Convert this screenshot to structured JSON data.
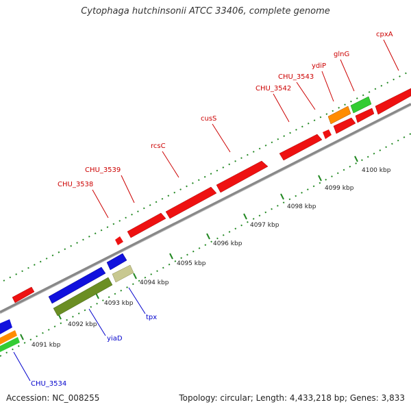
{
  "title": "Cytophaga hutchinsonii ATCC 33406, complete genome",
  "accession": "Accession: NC_008255",
  "topology": "Topology: circular; Length: 4,433,218 bp; Genes: 3,833",
  "colors": {
    "forward_label": "#cc0000",
    "reverse_label": "#0000cc",
    "red_gene": "#ee1111",
    "blue_gene": "#1111dd",
    "olive_gene": "#6b8e23",
    "khaki_gene": "#c8c890",
    "orange_gene": "#ff8c00",
    "green_gene": "#33cc33",
    "backbone": "#888888",
    "ticks": "#228822"
  },
  "scale_labels": [
    "4091 kbp",
    "4092 kbp",
    "4093 kbp",
    "4094 kbp",
    "4095 kbp",
    "4096 kbp",
    "4097 kbp",
    "4098 kbp",
    "4099 kbp",
    "4100 kbp"
  ],
  "forward_labels": [
    "CHU_3538",
    "CHU_3539",
    "rcsC",
    "cusS",
    "CHU_3542",
    "CHU_3543",
    "ydiP",
    "glnG",
    "cpxA"
  ],
  "reverse_labels": [
    "CHU_3534",
    "yiaD",
    "tpx"
  ]
}
